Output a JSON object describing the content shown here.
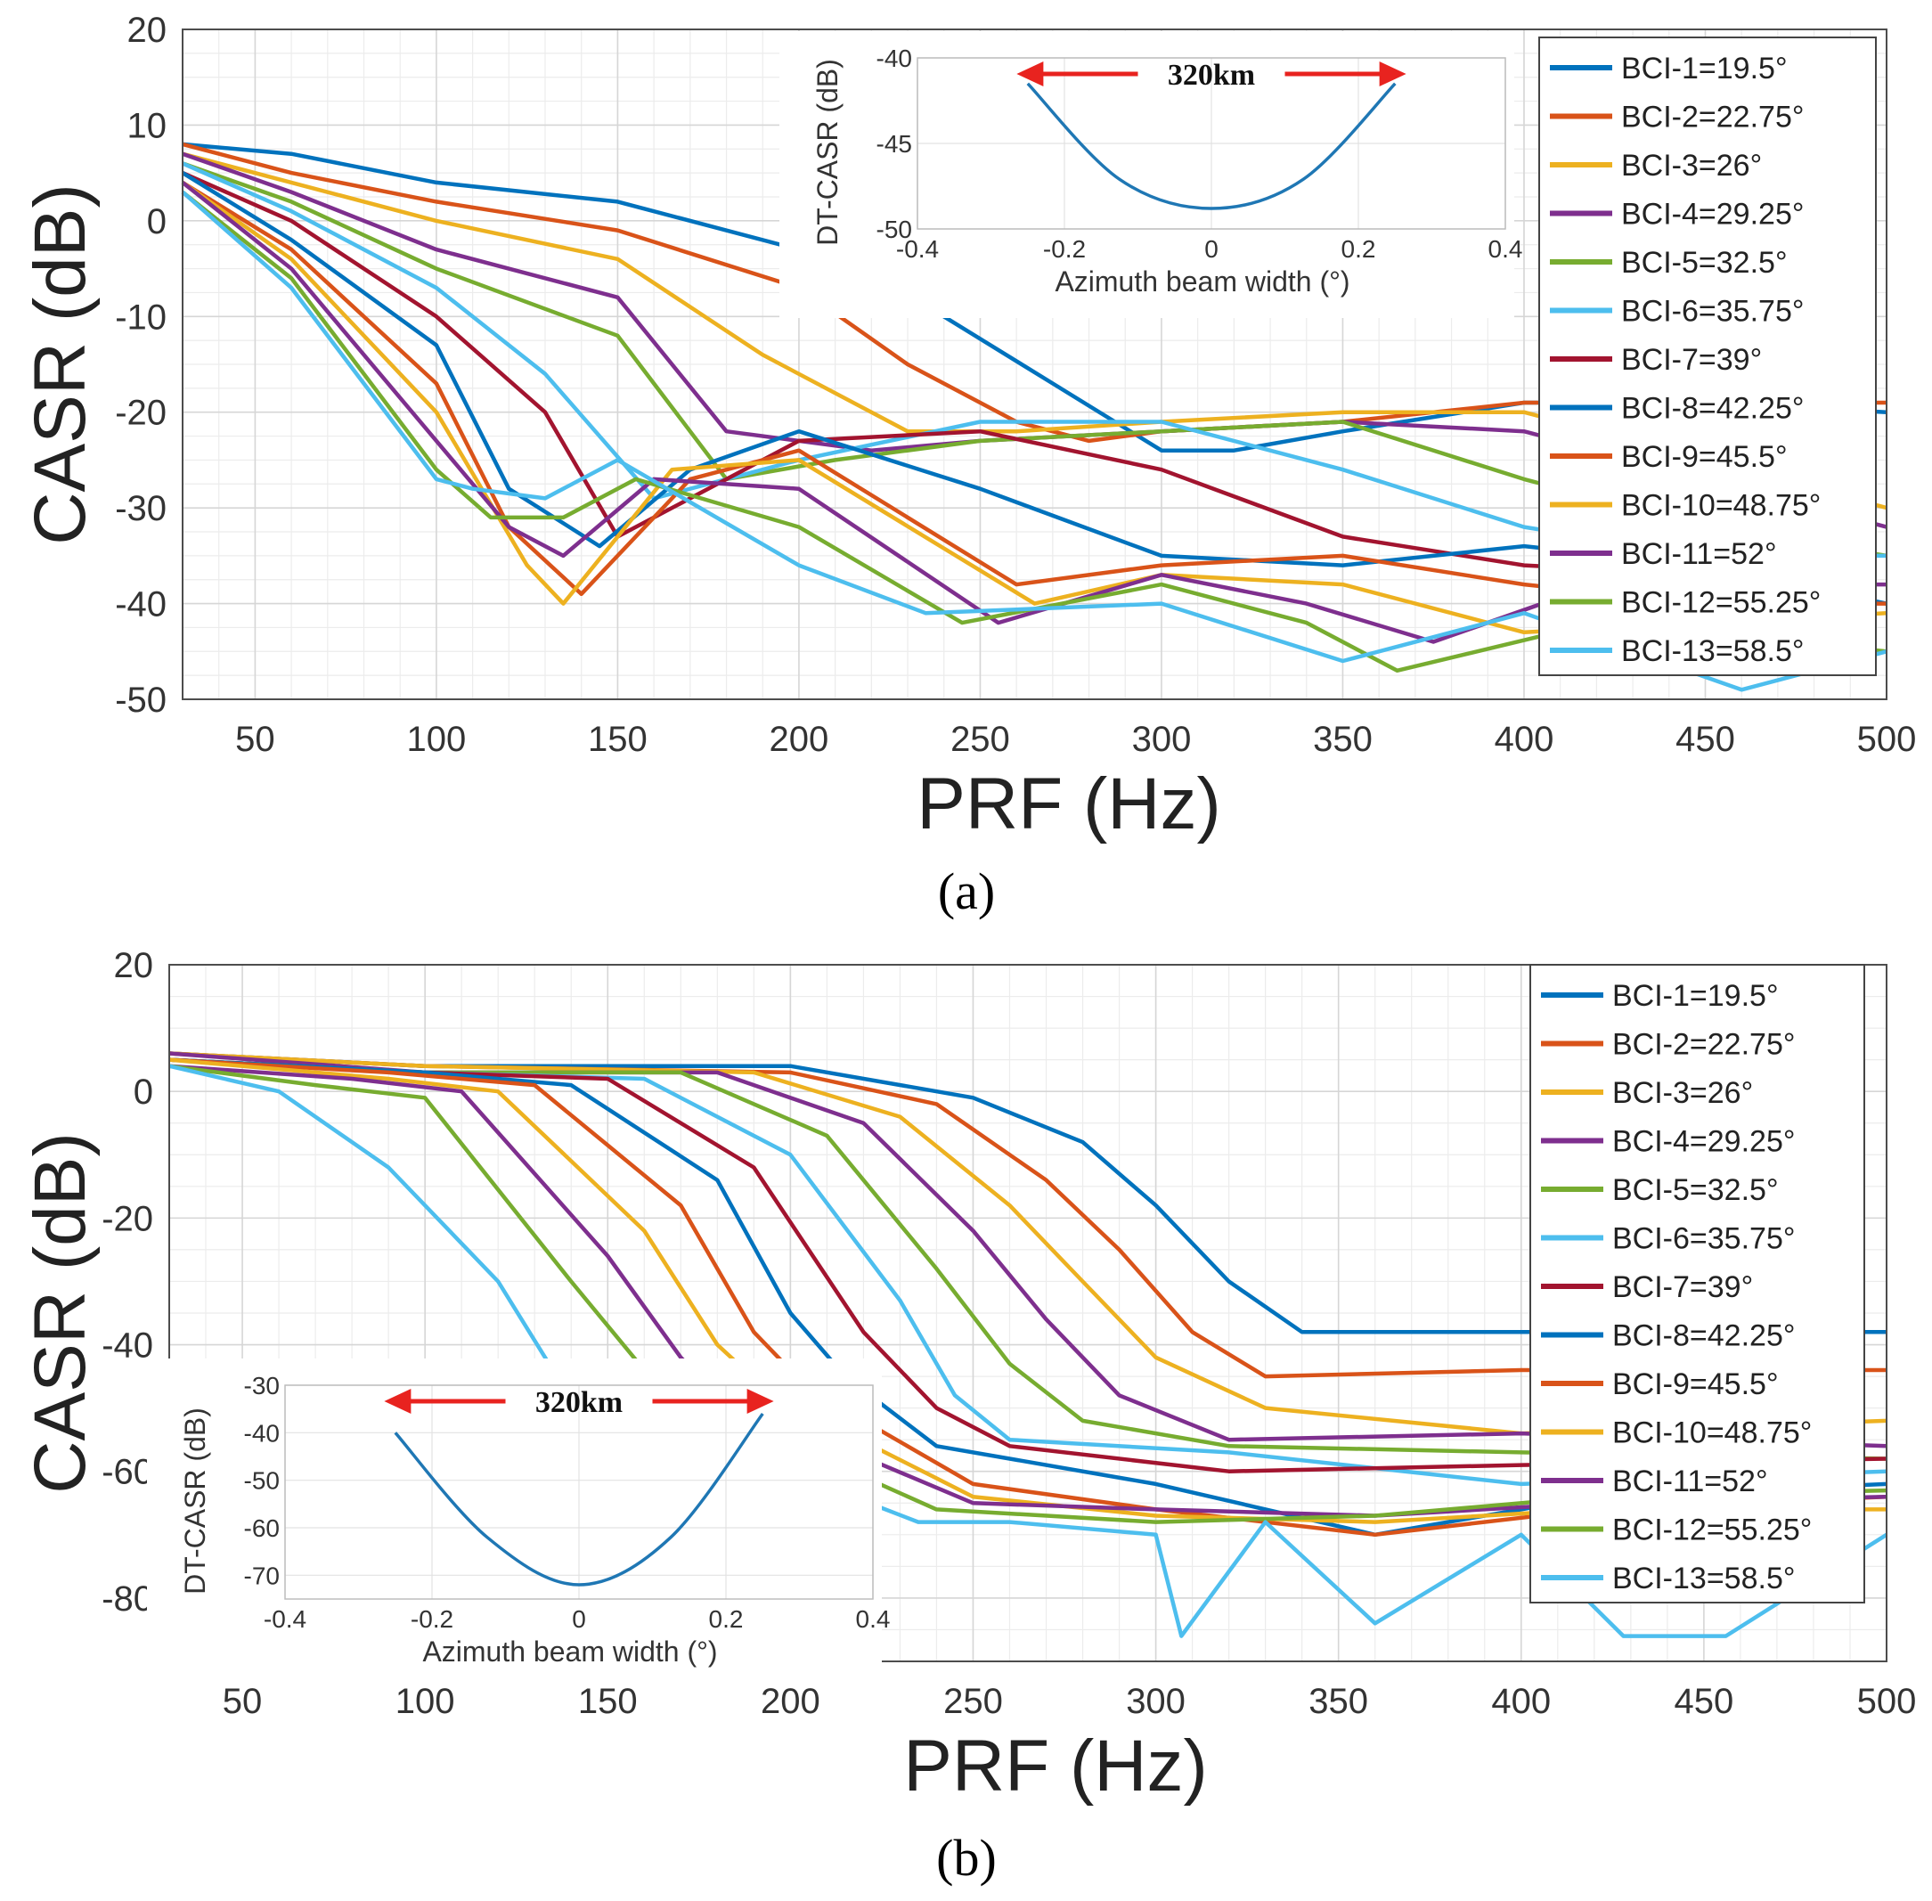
{
  "captions": [
    "(a)",
    "(b)"
  ],
  "colors": [
    "#0072BD",
    "#D95319",
    "#EDB120",
    "#7E2F8E",
    "#77AC30",
    "#4DBEEE",
    "#A2142F",
    "#0072BD",
    "#D95319",
    "#EDB120",
    "#7E2F8E",
    "#77AC30",
    "#4DBEEE"
  ],
  "inset_color": "#1f77b4",
  "arrow_color": "#e8231f",
  "chart_data": [
    {
      "type": "line",
      "panel": "a",
      "xlabel": "PRF (Hz)",
      "ylabel": "CASR (dB)",
      "xlim": [
        30,
        500
      ],
      "ylim": [
        -50,
        20
      ],
      "xticks": [
        50,
        100,
        150,
        200,
        250,
        300,
        350,
        400,
        450,
        500
      ],
      "yticks": [
        20,
        10,
        0,
        -10,
        -20,
        -30,
        -40,
        -50
      ],
      "grid": true,
      "legend_position": "right",
      "series": [
        {
          "name": "BCI-1=19.5°",
          "x": [
            30,
            60,
            100,
            150,
            200,
            240,
            270,
            300,
            320,
            350,
            400,
            450,
            500
          ],
          "y": [
            8,
            7,
            4,
            2,
            -3,
            -10,
            -17,
            -24,
            -24,
            -22,
            -19,
            -19,
            -20
          ]
        },
        {
          "name": "BCI-2=22.75°",
          "x": [
            30,
            60,
            100,
            150,
            200,
            230,
            260,
            280,
            300,
            350,
            400,
            450,
            500
          ],
          "y": [
            8,
            5,
            2,
            -1,
            -7,
            -15,
            -21,
            -23,
            -22,
            -21,
            -19,
            -19,
            -19
          ]
        },
        {
          "name": "BCI-3=26°",
          "x": [
            30,
            60,
            100,
            150,
            190,
            230,
            260,
            300,
            350,
            400,
            450,
            500
          ],
          "y": [
            7,
            4,
            0,
            -4,
            -14,
            -22,
            -22,
            -21,
            -20,
            -20,
            -25,
            -30
          ]
        },
        {
          "name": "BCI-4=29.25°",
          "x": [
            30,
            60,
            100,
            150,
            180,
            220,
            250,
            300,
            350,
            400,
            450,
            500
          ],
          "y": [
            7,
            3,
            -3,
            -8,
            -22,
            -24,
            -23,
            -22,
            -21,
            -22,
            -27,
            -32
          ]
        },
        {
          "name": "BCI-5=32.5°",
          "x": [
            30,
            60,
            100,
            150,
            180,
            210,
            250,
            300,
            350,
            400,
            450,
            500
          ],
          "y": [
            6,
            2,
            -5,
            -12,
            -27,
            -25,
            -23,
            -22,
            -21,
            -27,
            -32,
            -35
          ]
        },
        {
          "name": "BCI-6=35.75°",
          "x": [
            30,
            60,
            100,
            130,
            160,
            200,
            250,
            300,
            350,
            400,
            450,
            500
          ],
          "y": [
            6,
            1,
            -7,
            -16,
            -29,
            -25,
            -21,
            -21,
            -26,
            -32,
            -35,
            -35
          ]
        },
        {
          "name": "BCI-7=39°",
          "x": [
            30,
            60,
            100,
            130,
            150,
            200,
            250,
            300,
            350,
            400,
            450,
            500
          ],
          "y": [
            5,
            0,
            -10,
            -20,
            -33,
            -23,
            -22,
            -26,
            -33,
            -36,
            -37,
            -40
          ]
        },
        {
          "name": "BCI-8=42.25°",
          "x": [
            30,
            60,
            100,
            120,
            145,
            170,
            200,
            250,
            300,
            350,
            400,
            450,
            500
          ],
          "y": [
            5,
            -2,
            -13,
            -28,
            -34,
            -26,
            -22,
            -28,
            -35,
            -36,
            -34,
            -36,
            -40
          ]
        },
        {
          "name": "BCI-9=45.5°",
          "x": [
            30,
            60,
            100,
            120,
            140,
            170,
            200,
            260,
            300,
            350,
            400,
            450,
            500
          ],
          "y": [
            4,
            -3,
            -17,
            -32,
            -39,
            -27,
            -24,
            -38,
            -36,
            -35,
            -38,
            -40,
            -40
          ]
        },
        {
          "name": "BCI-10=48.75°",
          "x": [
            30,
            60,
            100,
            125,
            135,
            165,
            200,
            265,
            300,
            350,
            400,
            450,
            500
          ],
          "y": [
            4,
            -4,
            -20,
            -36,
            -40,
            -26,
            -25,
            -40,
            -37,
            -38,
            -43,
            -42,
            -41
          ]
        },
        {
          "name": "BCI-11=52°",
          "x": [
            30,
            60,
            100,
            120,
            135,
            160,
            200,
            255,
            300,
            340,
            375,
            420,
            500
          ],
          "y": [
            4,
            -5,
            -23,
            -32,
            -35,
            -27,
            -28,
            -42,
            -37,
            -40,
            -44,
            -38,
            -38
          ]
        },
        {
          "name": "BCI-12=55.25°",
          "x": [
            30,
            60,
            100,
            115,
            135,
            155,
            200,
            245,
            300,
            340,
            365,
            420,
            500
          ],
          "y": [
            3,
            -6,
            -26,
            -31,
            -31,
            -27,
            -32,
            -42,
            -38,
            -42,
            -47,
            -42,
            -45
          ]
        },
        {
          "name": "BCI-13=58.5°",
          "x": [
            30,
            60,
            100,
            110,
            130,
            150,
            200,
            235,
            300,
            350,
            400,
            460,
            500
          ],
          "y": [
            3,
            -7,
            -27,
            -28,
            -29,
            -25,
            -36,
            -41,
            -40,
            -46,
            -41,
            -49,
            -45
          ]
        }
      ],
      "inset": {
        "xlabel": "Azimuth beam width (°)",
        "ylabel": "DT-CASR (dB)",
        "xlim": [
          -0.4,
          0.4
        ],
        "ylim": [
          -50,
          -40
        ],
        "xticks": [
          -0.4,
          -0.2,
          0,
          0.2,
          0.4
        ],
        "yticks": [
          -40,
          -45,
          -50
        ],
        "curve": {
          "x": [
            -0.25,
            -0.125,
            0,
            0.125,
            0.25
          ],
          "y": [
            -41.5,
            -47.1,
            -48.8,
            -47.1,
            -41.5
          ]
        },
        "annotation": "320km"
      }
    },
    {
      "type": "line",
      "panel": "b",
      "xlabel": "PRF (Hz)",
      "ylabel": "CASR (dB)",
      "xlim": [
        30,
        500
      ],
      "ylim": [
        -90,
        20
      ],
      "xticks": [
        50,
        100,
        150,
        200,
        250,
        300,
        350,
        400,
        450,
        500
      ],
      "yticks": [
        20,
        0,
        -20,
        -40,
        -60,
        -80
      ],
      "grid": true,
      "legend_position": "right",
      "series": [
        {
          "name": "BCI-1=19.5°",
          "x": [
            30,
            100,
            200,
            250,
            280,
            300,
            320,
            340,
            400,
            500
          ],
          "y": [
            6,
            4,
            4,
            -1,
            -8,
            -18,
            -30,
            -38,
            -38,
            -38
          ]
        },
        {
          "name": "BCI-2=22.75°",
          "x": [
            30,
            100,
            200,
            240,
            270,
            290,
            310,
            330,
            400,
            500
          ],
          "y": [
            6,
            4,
            3,
            -2,
            -14,
            -25,
            -38,
            -45,
            -44,
            -44
          ]
        },
        {
          "name": "BCI-3=26°",
          "x": [
            30,
            100,
            190,
            230,
            260,
            280,
            300,
            330,
            400,
            500
          ],
          "y": [
            6,
            4,
            3,
            -4,
            -18,
            -30,
            -42,
            -50,
            -54,
            -52
          ]
        },
        {
          "name": "BCI-4=29.25°",
          "x": [
            30,
            100,
            180,
            220,
            250,
            270,
            290,
            320,
            400,
            500
          ],
          "y": [
            6,
            3,
            3,
            -5,
            -22,
            -36,
            -48,
            -55,
            -54,
            -56
          ]
        },
        {
          "name": "BCI-5=32.5°",
          "x": [
            30,
            100,
            170,
            210,
            240,
            260,
            280,
            320,
            400,
            500
          ],
          "y": [
            5,
            3,
            3,
            -7,
            -28,
            -43,
            -52,
            -56,
            -57,
            -58
          ]
        },
        {
          "name": "BCI-6=35.75°",
          "x": [
            30,
            100,
            160,
            200,
            230,
            245,
            260,
            320,
            400,
            500
          ],
          "y": [
            5,
            3,
            2,
            -10,
            -33,
            -48,
            -55,
            -57,
            -62,
            -60
          ]
        },
        {
          "name": "BCI-7=39°",
          "x": [
            30,
            100,
            150,
            190,
            220,
            240,
            260,
            320,
            400,
            500
          ],
          "y": [
            5,
            3,
            2,
            -12,
            -38,
            -50,
            -56,
            -60,
            -59,
            -58
          ]
        },
        {
          "name": "BCI-8=42.25°",
          "x": [
            30,
            100,
            140,
            180,
            200,
            215,
            240,
            300,
            360,
            420,
            500
          ],
          "y": [
            5,
            3,
            1,
            -14,
            -35,
            -45,
            -56,
            -62,
            -70,
            -64,
            -62
          ]
        },
        {
          "name": "BCI-9=45.5°",
          "x": [
            30,
            90,
            130,
            170,
            190,
            205,
            250,
            300,
            360,
            420,
            500
          ],
          "y": [
            5,
            3,
            1,
            -18,
            -38,
            -47,
            -62,
            -66,
            -70,
            -66,
            -64
          ]
        },
        {
          "name": "BCI-10=48.75°",
          "x": [
            30,
            90,
            120,
            160,
            180,
            195,
            250,
            300,
            360,
            420,
            500
          ],
          "y": [
            5,
            2,
            0,
            -22,
            -40,
            -48,
            -64,
            -67,
            -68,
            -66,
            -66
          ]
        },
        {
          "name": "BCI-11=52°",
          "x": [
            30,
            80,
            110,
            150,
            170,
            180,
            250,
            300,
            360,
            420,
            500
          ],
          "y": [
            4,
            2,
            0,
            -26,
            -42,
            -48,
            -65,
            -66,
            -67,
            -65,
            -64
          ]
        },
        {
          "name": "BCI-12=55.25°",
          "x": [
            30,
            70,
            100,
            140,
            160,
            170,
            240,
            300,
            360,
            420,
            500
          ],
          "y": [
            4,
            1,
            -1,
            -30,
            -44,
            -48,
            -66,
            -68,
            -67,
            -64,
            -63
          ]
        },
        {
          "name": "BCI-13=58.5°",
          "x": [
            30,
            60,
            90,
            120,
            135,
            145,
            235,
            260,
            300,
            307,
            330,
            360,
            400,
            428,
            456,
            500
          ],
          "y": [
            4,
            0,
            -12,
            -30,
            -44,
            -48,
            -68,
            -68,
            -70,
            -86,
            -68,
            -84,
            -70,
            -86,
            -86,
            -70
          ]
        }
      ],
      "inset": {
        "xlabel": "Azimuth beam width (°)",
        "ylabel": "DT-CASR (dB)",
        "xlim": [
          -0.4,
          0.4
        ],
        "ylim": [
          -75,
          -30
        ],
        "xticks": [
          -0.4,
          -0.2,
          0,
          0.2,
          0.4
        ],
        "yticks": [
          -30,
          -40,
          -50,
          -60,
          -70
        ],
        "curve": {
          "x": [
            -0.25,
            -0.125,
            0,
            0.125,
            0.25
          ],
          "y": [
            -40,
            -62,
            -72,
            -62,
            -36
          ]
        },
        "annotation": "320km"
      }
    }
  ]
}
